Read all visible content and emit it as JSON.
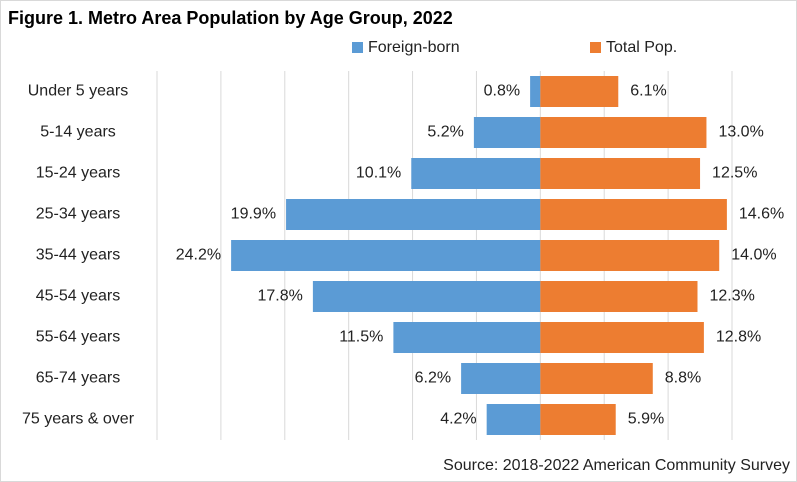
{
  "chart_data": {
    "type": "butterfly_bar",
    "title": "Figure 1. Metro Area Population by Age Group, 2022",
    "source": "Source: 2018-2022 American Community Survey",
    "categories": [
      "Under 5 years",
      "5-14 years",
      "15-24 years",
      "25-34 years",
      "35-44 years",
      "45-54 years",
      "55-64 years",
      "65-74 years",
      "75 years & over"
    ],
    "series": [
      {
        "name": "Foreign-born",
        "color": "#5b9bd5",
        "values": [
          0.8,
          5.2,
          10.1,
          19.9,
          24.2,
          17.8,
          11.5,
          6.2,
          4.2
        ],
        "value_labels": [
          "0.8%",
          "5.2%",
          "10.1%",
          "19.9%",
          "24.2%",
          "17.8%",
          "11.5%",
          "6.2%",
          "4.2%"
        ]
      },
      {
        "name": "Total Pop.",
        "color": "#ed7d31",
        "values": [
          6.1,
          13.0,
          12.5,
          14.6,
          14.0,
          12.3,
          12.8,
          8.8,
          5.9
        ],
        "value_labels": [
          "6.1%",
          "13.0%",
          "12.5%",
          "14.6%",
          "14.0%",
          "12.3%",
          "12.8%",
          "8.8%",
          "5.9%"
        ]
      }
    ],
    "xlim": [
      -30,
      15
    ],
    "xticks": [
      -30,
      -25,
      -20,
      -15,
      -10,
      -5,
      0,
      5,
      10,
      15
    ],
    "grid": true
  }
}
